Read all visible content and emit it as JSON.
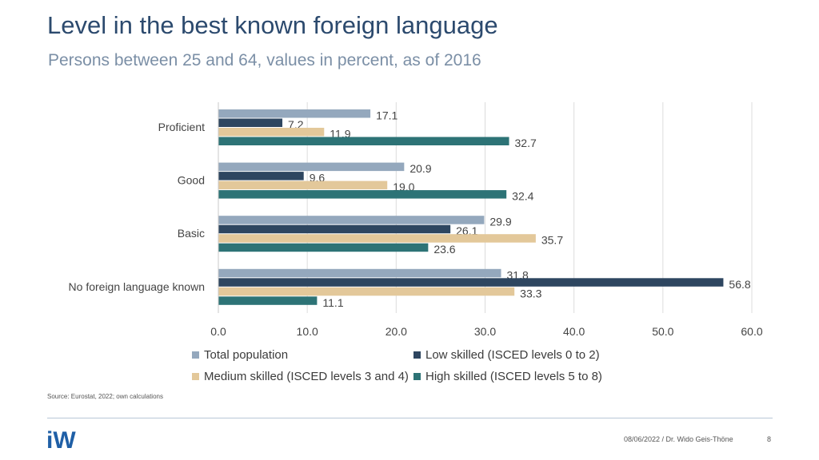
{
  "header": {
    "title": "Level in the best known foreign language",
    "subtitle": "Persons between 25 and 64, values in percent, as of 2016"
  },
  "chart_data": {
    "type": "bar",
    "orientation": "horizontal",
    "categories": [
      "Proficient",
      "Good",
      "Basic",
      "No foreign language known"
    ],
    "series": [
      {
        "name": "Total population",
        "color": "#94a8bd",
        "values": [
          17.1,
          20.9,
          29.9,
          31.8
        ]
      },
      {
        "name": "Low skilled (ISCED levels 0 to 2)",
        "color": "#2e4660",
        "values": [
          7.2,
          9.6,
          26.1,
          56.8
        ]
      },
      {
        "name": "Medium skilled (ISCED levels 3 and 4)",
        "color": "#e3c89a",
        "values": [
          11.9,
          19.0,
          35.7,
          33.3
        ]
      },
      {
        "name": "High skilled (ISCED levels 5 to 8)",
        "color": "#2d7376",
        "values": [
          32.7,
          32.4,
          23.6,
          11.1
        ]
      }
    ],
    "xlim": [
      0,
      60
    ],
    "xticks": [
      "0.0",
      "10.0",
      "20.0",
      "30.0",
      "40.0",
      "50.0",
      "60.0"
    ],
    "xtick_values": [
      0,
      10,
      20,
      30,
      40,
      50,
      60
    ],
    "grid": true,
    "legend_position": "bottom"
  },
  "source": "Source: Eurostat, 2022; own calculations",
  "footer": {
    "logo_text": "iW",
    "date_author": "08/06/2022 / Dr. Wido Geis-Thöne",
    "page": "8"
  }
}
